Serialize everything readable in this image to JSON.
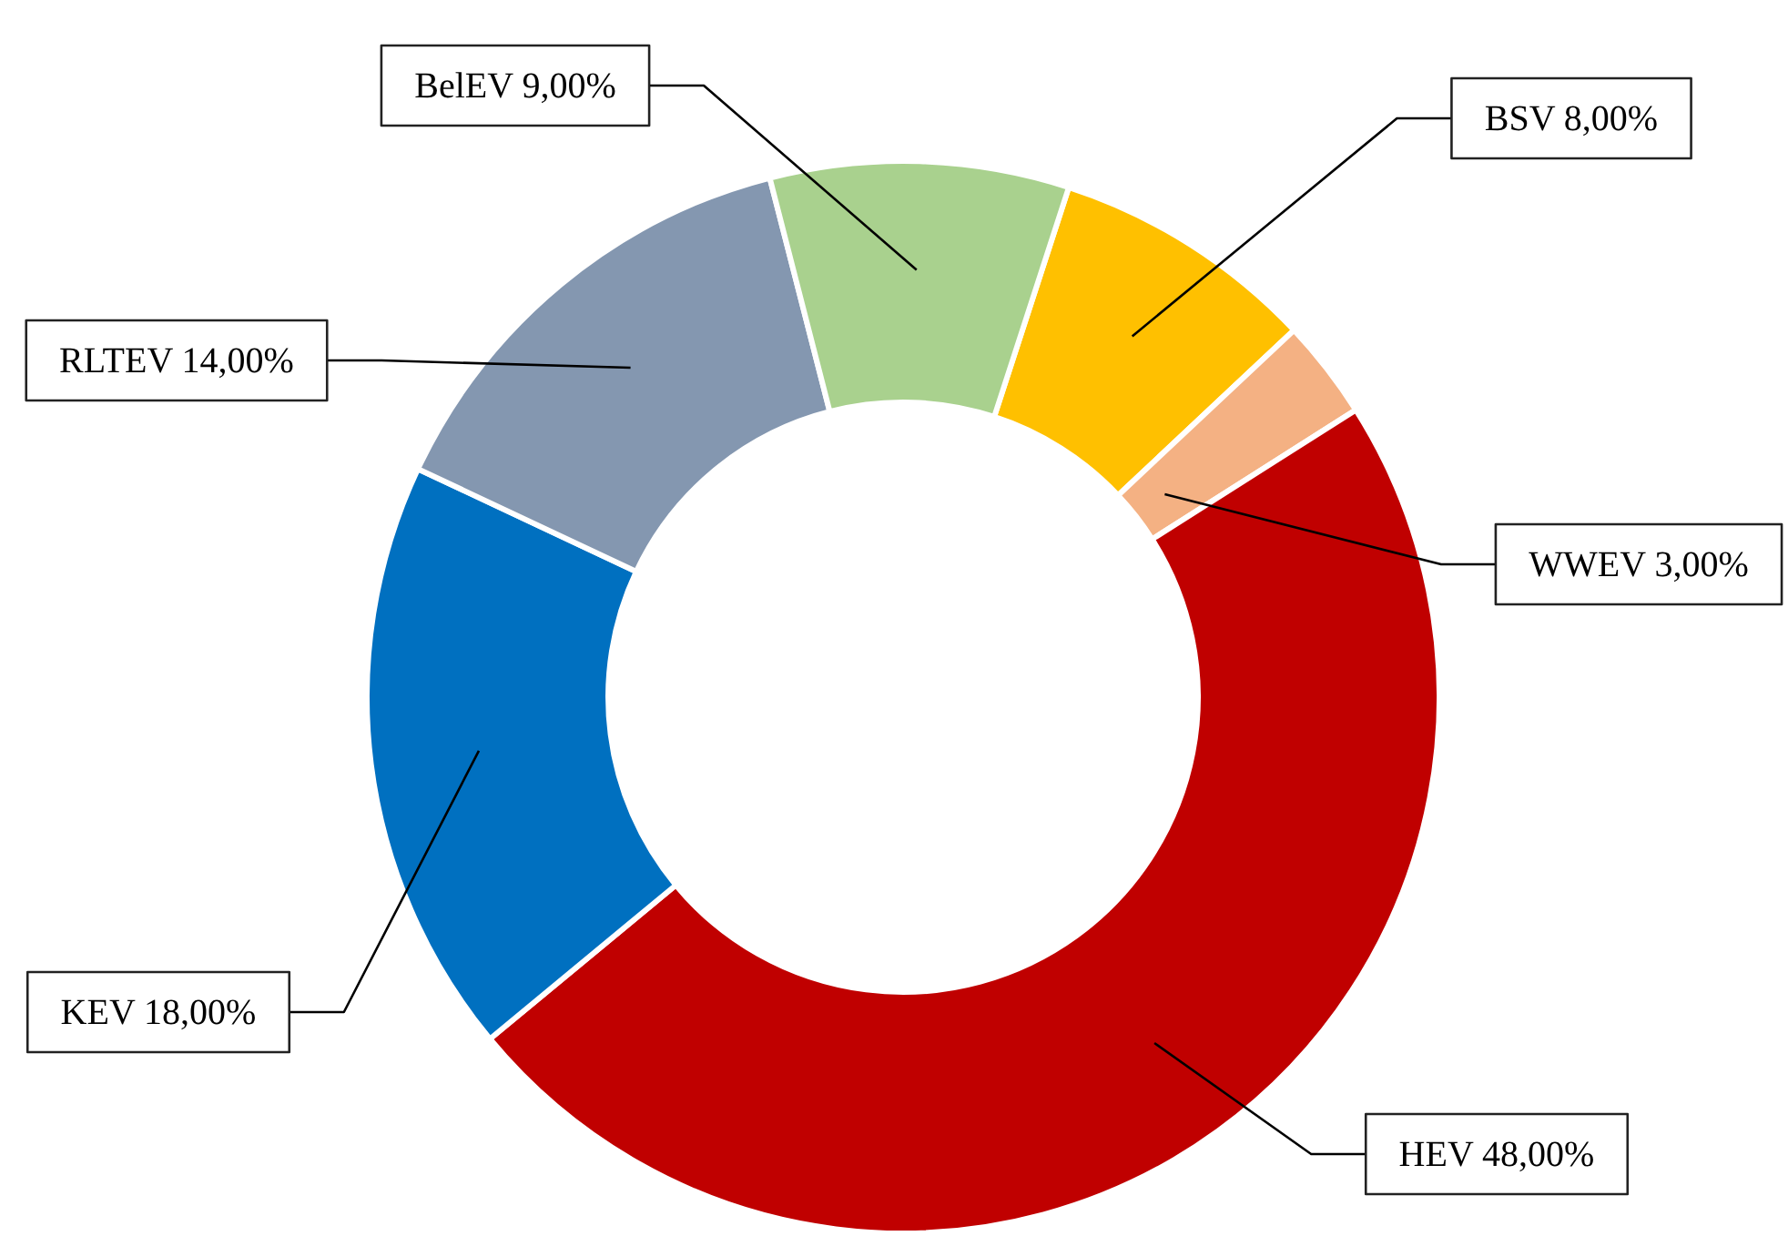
{
  "chart_data": {
    "type": "donut",
    "categories": [
      "BSV",
      "WWEV",
      "HEV",
      "KEV",
      "RLTEV",
      "BelEV"
    ],
    "values": [
      8,
      3,
      48,
      18,
      14,
      9
    ],
    "colors": [
      "#ffc000",
      "#f4b183",
      "#c00000",
      "#0070c0",
      "#8497b0",
      "#a9d18e"
    ],
    "value_labels": [
      "8,00%",
      "3,00%",
      "48,00%",
      "18,00%",
      "14,00%",
      "9,00%"
    ],
    "legend": false
  }
}
